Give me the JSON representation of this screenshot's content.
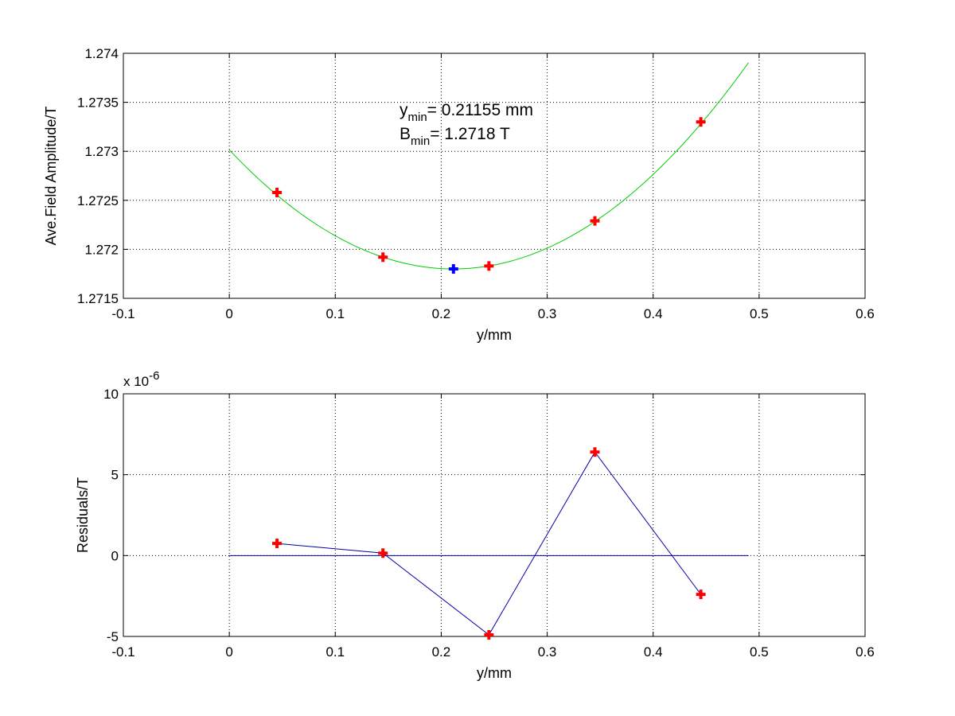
{
  "chart_data": [
    {
      "type": "line",
      "xlabel": "y/mm",
      "ylabel": "Ave.Field Amplitude/T",
      "xlim": [
        -0.1,
        0.6
      ],
      "ylim": [
        1.2715,
        1.274
      ],
      "xticks": [
        "-0.1",
        "0",
        "0.1",
        "0.2",
        "0.3",
        "0.4",
        "0.5",
        "0.6"
      ],
      "yticks": [
        "1.2715",
        "1.272",
        "1.2725",
        "1.273",
        "1.2735",
        "1.274"
      ],
      "grid": true,
      "annotation": {
        "line1_base": "y",
        "line1_sub": "min",
        "line1_rest": "= 0.21155 mm",
        "line2_base": "B",
        "line2_sub": "min",
        "line2_rest": "= 1.2718 T"
      },
      "fit": {
        "color": "#00cc00",
        "x_start": 0.0,
        "x_end": 0.49,
        "vertex_x": 0.21155,
        "vertex_y": 1.2718,
        "curvature": 0.02715
      },
      "measured_points": {
        "color": "#ff0000",
        "x": [
          0.045,
          0.145,
          0.245,
          0.345,
          0.445
        ],
        "y": [
          1.27258,
          1.27192,
          1.27183,
          1.27229,
          1.2733
        ]
      },
      "minimum_point": {
        "color": "#0000ff",
        "x": 0.21155,
        "y": 1.2718
      }
    },
    {
      "type": "line",
      "xlabel": "y/mm",
      "ylabel": "Residuals/T",
      "xlim": [
        -0.1,
        0.6
      ],
      "ylim": [
        -5,
        10
      ],
      "exponent_label_base": "x 10",
      "exponent_label_power": "-6",
      "xticks": [
        "-0.1",
        "0",
        "0.1",
        "0.2",
        "0.3",
        "0.4",
        "0.5",
        "0.6"
      ],
      "yticks": [
        "-5",
        "0",
        "5",
        "10"
      ],
      "grid": true,
      "zero_line": {
        "color": "#0000aa",
        "x_start": 0.0,
        "x_end": 0.49
      },
      "series": [
        {
          "color": "#0000aa",
          "marker_color": "#ff0000",
          "x": [
            0.045,
            0.145,
            0.245,
            0.345,
            0.445
          ],
          "y": [
            0.75,
            0.15,
            -4.9,
            6.4,
            -2.4
          ]
        }
      ]
    }
  ]
}
